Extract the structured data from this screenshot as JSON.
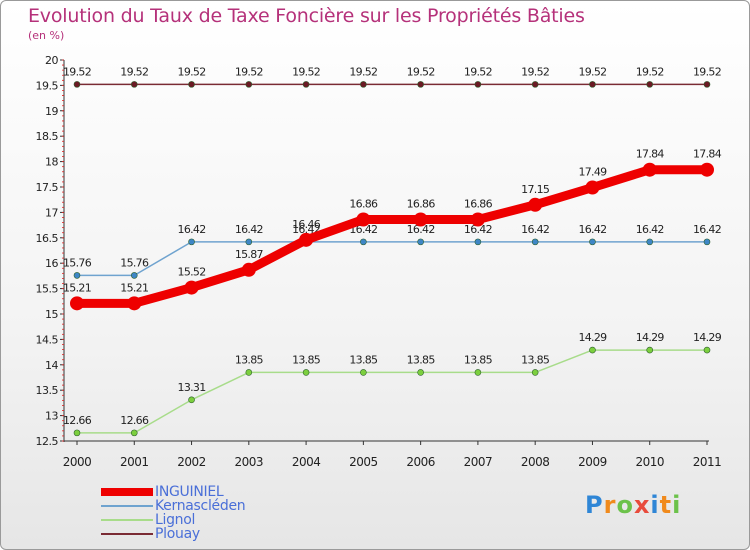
{
  "chart_data": {
    "type": "line",
    "title": "Evolution du Taux de Taxe Foncière sur les Propriétés Bâties",
    "subtitle": "(en %)",
    "categories": [
      "2000",
      "2001",
      "2002",
      "2003",
      "2004",
      "2005",
      "2006",
      "2007",
      "2008",
      "2009",
      "2010",
      "2011"
    ],
    "ylim": [
      12.5,
      20
    ],
    "yticks": [
      "12.5",
      "13",
      "13.5",
      "14",
      "14.5",
      "15",
      "15.5",
      "16",
      "16.5",
      "17",
      "17.5",
      "18",
      "18.5",
      "19",
      "19.5",
      "20"
    ],
    "grid": false,
    "legend_position": "bottom-left",
    "series": [
      {
        "name": "Plouay",
        "color": "#7a2b34",
        "dot": "#6a1a24",
        "values": [
          19.52,
          19.52,
          19.52,
          19.52,
          19.52,
          19.52,
          19.52,
          19.52,
          19.52,
          19.52,
          19.52,
          19.52
        ],
        "labels": [
          "19.52",
          "19.52",
          "19.52",
          "19.52",
          "19.52",
          "19.52",
          "19.52",
          "19.52",
          "19.52",
          "19.52",
          "19.52",
          "19.52"
        ]
      },
      {
        "name": "Kernascléden",
        "color": "#6fa3cf",
        "dot": "#3e86c6",
        "values": [
          15.76,
          15.76,
          16.42,
          16.42,
          16.42,
          16.42,
          16.42,
          16.42,
          16.42,
          16.42,
          16.42,
          16.42
        ],
        "labels": [
          "15.76",
          "15.76",
          "16.42",
          "16.42",
          "16.42",
          "16.42",
          "16.42",
          "16.42",
          "16.42",
          "16.42",
          "16.42",
          "16.42"
        ]
      },
      {
        "name": "Lignol",
        "color": "#a8dc8a",
        "dot": "#7ccf3e",
        "values": [
          12.66,
          12.66,
          13.31,
          13.85,
          13.85,
          13.85,
          13.85,
          13.85,
          13.85,
          14.29,
          14.29,
          14.29
        ],
        "labels": [
          "12.66",
          "12.66",
          "13.31",
          "13.85",
          "13.85",
          "13.85",
          "13.85",
          "13.85",
          "13.85",
          "14.29",
          "14.29",
          "14.29"
        ]
      },
      {
        "name": "INGUINIEL",
        "color": "#ee0000",
        "dot": "#ee0000",
        "values": [
          15.21,
          15.21,
          15.52,
          15.87,
          16.46,
          16.86,
          16.86,
          16.86,
          17.15,
          17.49,
          17.84,
          17.84
        ],
        "labels": [
          "15.21",
          "15.21",
          "15.52",
          "15.87",
          "16.46",
          "16.86",
          "16.86",
          "16.86",
          "17.15",
          "17.49",
          "17.84",
          "17.84"
        ]
      }
    ],
    "legend": [
      "INGUINIEL",
      "Kernascléden",
      "Lignol",
      "Plouay"
    ]
  },
  "brand": {
    "letters": [
      "P",
      "r",
      "o",
      "x",
      "i",
      "t",
      "i"
    ],
    "colors": [
      "#2f86d6",
      "#f08a1c",
      "#6cc24a",
      "#e84b3c",
      "#2f86d6",
      "#f08a1c",
      "#6cc24a"
    ]
  }
}
